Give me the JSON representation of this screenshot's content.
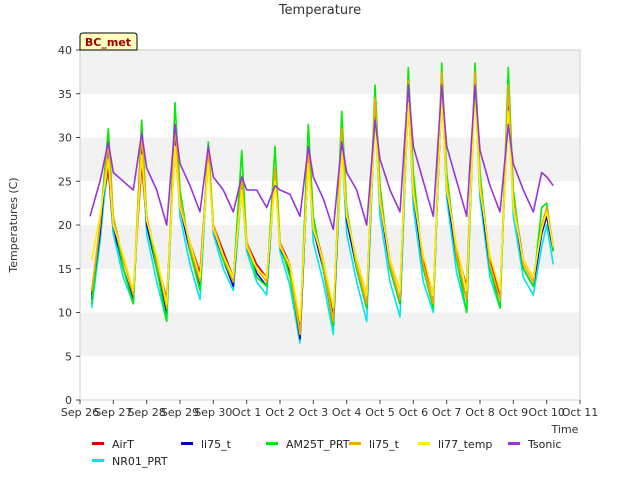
{
  "chart_data": {
    "type": "line",
    "title": "Temperature",
    "xlabel": "Time",
    "ylabel": "Temperatures (C)",
    "ylim": [
      0,
      40
    ],
    "xlim": [
      0,
      15
    ],
    "yticks": [
      0,
      5,
      10,
      15,
      20,
      25,
      30,
      35,
      40
    ],
    "xticks": [
      {
        "pos": 0,
        "label": "Sep 26"
      },
      {
        "pos": 1,
        "label": "Sep 27"
      },
      {
        "pos": 2,
        "label": "Sep 28"
      },
      {
        "pos": 3,
        "label": "Sep 29"
      },
      {
        "pos": 4,
        "label": "Sep 30"
      },
      {
        "pos": 5,
        "label": "Oct 1"
      },
      {
        "pos": 6,
        "label": "Oct 2"
      },
      {
        "pos": 7,
        "label": "Oct 3"
      },
      {
        "pos": 8,
        "label": "Oct 4"
      },
      {
        "pos": 9,
        "label": "Oct 5"
      },
      {
        "pos": 10,
        "label": "Oct 6"
      },
      {
        "pos": 11,
        "label": "Oct 7"
      },
      {
        "pos": 12,
        "label": "Oct 8"
      },
      {
        "pos": 13,
        "label": "Oct 9"
      },
      {
        "pos": 14,
        "label": "Oct 10"
      },
      {
        "pos": 15,
        "label": "Oct 11"
      }
    ],
    "x_unit": "days since Sep 26",
    "grid": "horizontal bands",
    "legend_position": "bottom",
    "site_badge": "BC_met",
    "series": [
      {
        "name": "AirT",
        "color": "#dd0000",
        "x": [
          0.35,
          0.6,
          0.85,
          1.0,
          1.3,
          1.6,
          1.85,
          2.0,
          2.3,
          2.6,
          2.85,
          3.0,
          3.3,
          3.6,
          3.85,
          4.0,
          4.3,
          4.6,
          4.85,
          5.0,
          5.3,
          5.6,
          5.85,
          6.0,
          6.3,
          6.6,
          6.85,
          7.0,
          7.3,
          7.6,
          7.85,
          8.0,
          8.3,
          8.6,
          8.85,
          9.0,
          9.3,
          9.6,
          9.85,
          10.0,
          10.3,
          10.6,
          10.85,
          11.0,
          11.3,
          11.6,
          11.85,
          12.0,
          12.3,
          12.6,
          12.85,
          13.0,
          13.3,
          13.6,
          13.85,
          14.0,
          14.2
        ],
        "y": [
          12.0,
          20.0,
          26.5,
          19.0,
          16.0,
          12.5,
          27.0,
          20.0,
          16.0,
          11.5,
          29.0,
          22.0,
          18.0,
          14.5,
          28.0,
          20.0,
          17.0,
          14.0,
          24.5,
          18.0,
          15.5,
          14.0,
          25.5,
          18.0,
          15.5,
          8.0,
          27.5,
          20.0,
          16.0,
          10.0,
          29.5,
          21.0,
          16.0,
          12.0,
          32.5,
          23.0,
          16.0,
          12.5,
          34.0,
          24.0,
          16.0,
          12.0,
          35.0,
          25.0,
          17.0,
          13.0,
          36.0,
          25.0,
          16.0,
          12.0,
          33.5,
          23.0,
          16.0,
          14.0,
          19.5,
          22.0,
          17.5
        ]
      },
      {
        "name": "NR01_PRT",
        "color": "#00e5ee",
        "x": [
          0.35,
          0.6,
          0.85,
          1.0,
          1.3,
          1.6,
          1.85,
          2.0,
          2.3,
          2.6,
          2.85,
          3.0,
          3.3,
          3.6,
          3.85,
          4.0,
          4.3,
          4.6,
          4.85,
          5.0,
          5.3,
          5.6,
          5.85,
          6.0,
          6.3,
          6.6,
          6.85,
          7.0,
          7.3,
          7.6,
          7.85,
          8.0,
          8.3,
          8.6,
          8.85,
          9.0,
          9.3,
          9.6,
          9.85,
          10.0,
          10.3,
          10.6,
          10.85,
          11.0,
          11.3,
          11.6,
          11.85,
          12.0,
          12.3,
          12.6,
          12.85,
          13.0,
          13.3,
          13.6,
          13.85,
          14.0,
          14.2
        ],
        "y": [
          10.5,
          18.0,
          28.0,
          19.0,
          14.0,
          11.0,
          29.5,
          19.0,
          13.5,
          9.0,
          30.5,
          21.0,
          15.5,
          11.5,
          28.0,
          19.0,
          15.0,
          12.5,
          24.0,
          17.0,
          13.5,
          12.0,
          26.0,
          17.0,
          13.0,
          6.5,
          28.0,
          18.0,
          13.5,
          7.5,
          29.0,
          19.0,
          13.5,
          9.0,
          33.0,
          21.0,
          13.5,
          9.5,
          35.0,
          22.0,
          13.5,
          10.0,
          36.0,
          23.0,
          14.5,
          10.0,
          36.0,
          23.0,
          14.0,
          10.5,
          35.0,
          21.0,
          14.0,
          12.0,
          17.5,
          20.0,
          15.5
        ]
      },
      {
        "name": "li75_t",
        "color": "#0000cc",
        "x": [
          0.35,
          0.6,
          0.85,
          1.0,
          1.3,
          1.6,
          1.85,
          2.0,
          2.3,
          2.6,
          2.85,
          3.0,
          3.3,
          3.6,
          3.85,
          4.0,
          4.3,
          4.6,
          4.85,
          5.0,
          5.3,
          5.6,
          5.85,
          6.0,
          6.3,
          6.6,
          6.85,
          7.0,
          7.3,
          7.6,
          7.85,
          8.0,
          8.3,
          8.6,
          8.85,
          9.0,
          9.3,
          9.6,
          9.85,
          10.0,
          10.3,
          10.6,
          10.85,
          11.0,
          11.3,
          11.6,
          11.85,
          12.0,
          12.3,
          12.6,
          12.85,
          13.0,
          13.3,
          13.6,
          13.85,
          14.0,
          14.2
        ],
        "y": [
          11.5,
          19.0,
          29.5,
          20.0,
          15.0,
          11.5,
          30.0,
          20.0,
          15.0,
          10.0,
          30.5,
          22.0,
          17.0,
          13.0,
          28.5,
          19.5,
          16.0,
          13.0,
          25.0,
          17.5,
          14.5,
          13.0,
          26.0,
          17.5,
          14.5,
          7.0,
          28.0,
          19.5,
          15.0,
          8.5,
          30.0,
          20.5,
          15.0,
          10.5,
          33.0,
          22.5,
          15.0,
          11.0,
          35.5,
          23.5,
          15.0,
          11.0,
          36.0,
          24.0,
          16.0,
          11.5,
          36.5,
          24.0,
          15.0,
          11.5,
          35.0,
          22.5,
          15.0,
          13.0,
          19.0,
          21.0,
          17.0
        ]
      },
      {
        "name": "AM25T_PRT",
        "color": "#00ee00",
        "x": [
          0.35,
          0.6,
          0.85,
          1.0,
          1.3,
          1.6,
          1.85,
          2.0,
          2.3,
          2.6,
          2.85,
          3.0,
          3.3,
          3.6,
          3.85,
          4.0,
          4.3,
          4.6,
          4.85,
          5.0,
          5.3,
          5.6,
          5.85,
          6.0,
          6.3,
          6.6,
          6.85,
          7.0,
          7.3,
          7.6,
          7.85,
          8.0,
          8.3,
          8.6,
          8.85,
          9.0,
          9.3,
          9.6,
          9.85,
          10.0,
          10.3,
          10.6,
          10.85,
          11.0,
          11.3,
          11.6,
          11.85,
          12.0,
          12.3,
          12.6,
          12.85,
          13.0,
          13.3,
          13.6,
          13.85,
          14.0,
          14.2
        ],
        "y": [
          11.0,
          20.0,
          31.0,
          21.0,
          15.0,
          11.0,
          32.0,
          21.0,
          15.0,
          9.0,
          34.0,
          24.0,
          17.0,
          12.5,
          29.5,
          20.0,
          16.0,
          13.5,
          28.5,
          18.0,
          14.0,
          13.0,
          29.0,
          18.0,
          14.0,
          7.5,
          31.5,
          21.0,
          15.0,
          8.5,
          33.0,
          22.0,
          15.0,
          10.5,
          36.0,
          24.5,
          15.0,
          11.0,
          38.0,
          26.0,
          15.0,
          10.5,
          38.5,
          26.0,
          16.0,
          10.0,
          38.5,
          26.0,
          15.0,
          10.5,
          38.0,
          24.0,
          15.0,
          13.0,
          22.0,
          22.5,
          17.0
        ]
      },
      {
        "name": "li75_t",
        "color": "#ffa500",
        "x": [
          0.35,
          0.6,
          0.85,
          1.0,
          1.3,
          1.6,
          1.85,
          2.0,
          2.3,
          2.6,
          2.85,
          3.0,
          3.3,
          3.6,
          3.85,
          4.0,
          4.3,
          4.6,
          4.85,
          5.0,
          5.3,
          5.6,
          5.85,
          6.0,
          6.3,
          6.6,
          6.85,
          7.0,
          7.3,
          7.6,
          7.85,
          8.0,
          8.3,
          8.6,
          8.85,
          9.0,
          9.3,
          9.6,
          9.85,
          10.0,
          10.3,
          10.6,
          10.85,
          11.0,
          11.3,
          11.6,
          11.85,
          12.0,
          12.3,
          12.6,
          12.85,
          13.0,
          13.3,
          13.6,
          13.85,
          14.0,
          14.2
        ],
        "y": [
          12.5,
          20.0,
          29.5,
          21.0,
          16.0,
          12.0,
          30.5,
          21.0,
          16.0,
          10.5,
          31.5,
          23.0,
          17.5,
          13.5,
          28.5,
          20.0,
          16.5,
          13.5,
          25.5,
          18.0,
          15.0,
          13.5,
          26.5,
          18.0,
          15.0,
          7.5,
          29.0,
          20.0,
          15.5,
          9.0,
          31.0,
          21.5,
          15.5,
          11.0,
          34.5,
          23.5,
          15.5,
          11.5,
          36.5,
          24.5,
          15.5,
          11.0,
          37.5,
          25.0,
          16.5,
          11.5,
          37.5,
          25.0,
          15.5,
          11.5,
          36.0,
          23.0,
          15.5,
          13.5,
          20.0,
          22.0,
          17.5
        ]
      },
      {
        "name": "li77_temp",
        "color": "#ffee00",
        "x": [
          0.35,
          0.6,
          0.85,
          1.0,
          1.3,
          1.6,
          1.85,
          2.0,
          2.3,
          2.6,
          2.85,
          3.0,
          3.3,
          3.6,
          3.85,
          4.0,
          4.3,
          4.6,
          4.85,
          5.0,
          5.3,
          5.6,
          5.85,
          6.0,
          6.3,
          6.6,
          6.85,
          7.0,
          7.3,
          7.6,
          7.85,
          8.0,
          8.3,
          8.6,
          8.85,
          9.0,
          9.3,
          9.6,
          9.85,
          10.0,
          10.3,
          10.6,
          10.85,
          11.0,
          11.3,
          11.6,
          11.85,
          12.0,
          12.3,
          12.6,
          12.85,
          13.0,
          13.3,
          13.6,
          13.85,
          14.0,
          14.2
        ],
        "y": [
          16.0,
          21.0,
          27.5,
          20.0,
          16.5,
          12.5,
          28.0,
          20.5,
          16.5,
          11.0,
          29.0,
          22.0,
          18.0,
          14.0,
          27.0,
          19.5,
          16.5,
          14.0,
          24.0,
          17.5,
          15.0,
          14.0,
          25.0,
          17.5,
          15.5,
          9.0,
          27.0,
          19.5,
          16.0,
          10.5,
          28.5,
          21.0,
          16.0,
          12.0,
          32.0,
          22.5,
          16.0,
          12.5,
          34.0,
          23.5,
          16.5,
          12.0,
          35.0,
          24.0,
          17.5,
          12.5,
          35.0,
          24.0,
          16.5,
          12.5,
          33.0,
          22.0,
          16.0,
          14.0,
          19.5,
          21.5,
          17.5
        ]
      },
      {
        "name": "Tsonic",
        "color": "#9933dd",
        "x": [
          0.3,
          0.6,
          0.85,
          1.0,
          1.3,
          1.6,
          1.85,
          2.0,
          2.3,
          2.6,
          2.85,
          3.0,
          3.3,
          3.6,
          3.85,
          4.0,
          4.3,
          4.6,
          4.85,
          5.0,
          5.3,
          5.6,
          5.85,
          6.0,
          6.3,
          6.6,
          6.85,
          7.0,
          7.3,
          7.6,
          7.85,
          8.0,
          8.3,
          8.6,
          8.85,
          9.0,
          9.3,
          9.6,
          9.85,
          10.0,
          10.3,
          10.6,
          10.85,
          11.0,
          11.3,
          11.6,
          11.85,
          12.0,
          12.3,
          12.6,
          12.85,
          13.0,
          13.3,
          13.6,
          13.85,
          14.0,
          14.2
        ],
        "y": [
          21.0,
          25.0,
          29.5,
          26.0,
          25.0,
          24.0,
          30.5,
          26.5,
          24.0,
          20.0,
          31.5,
          27.0,
          24.5,
          21.5,
          29.0,
          25.5,
          24.0,
          21.5,
          25.5,
          24.0,
          24.0,
          22.0,
          24.5,
          24.0,
          23.5,
          21.0,
          29.0,
          25.5,
          23.0,
          19.5,
          29.5,
          26.0,
          24.0,
          20.0,
          32.0,
          27.5,
          24.0,
          21.5,
          36.0,
          29.0,
          25.0,
          21.0,
          36.0,
          29.0,
          25.0,
          21.0,
          36.0,
          28.5,
          24.5,
          21.5,
          31.5,
          27.0,
          24.0,
          21.5,
          26.0,
          25.5,
          24.5
        ]
      }
    ]
  }
}
